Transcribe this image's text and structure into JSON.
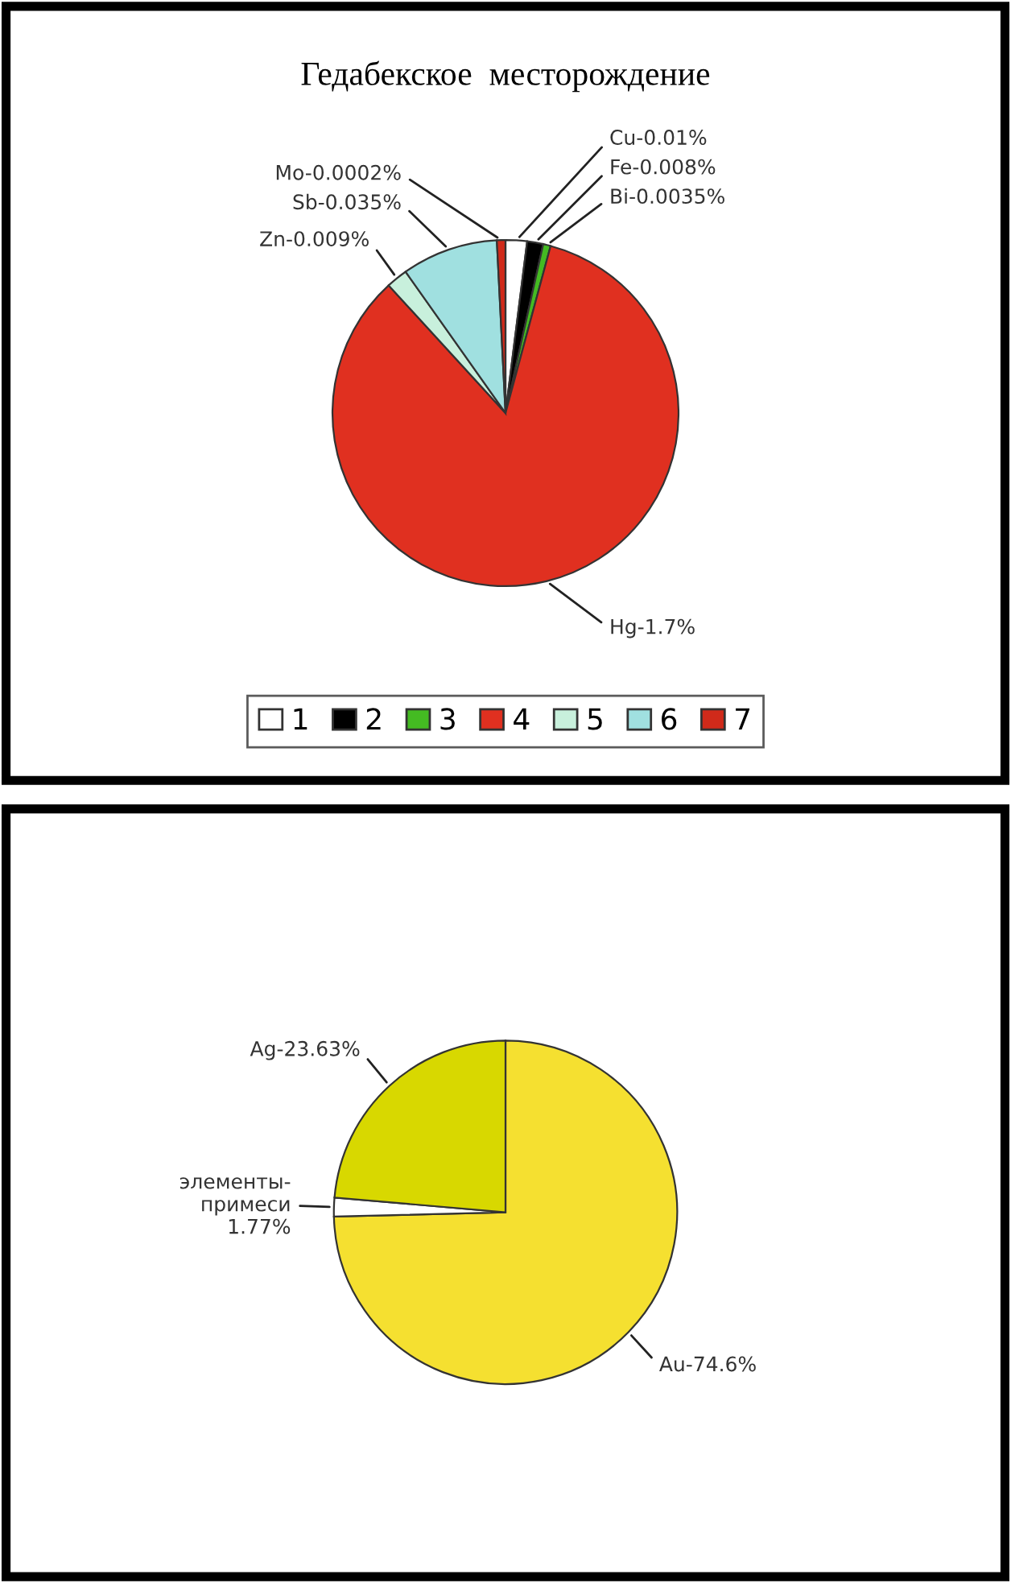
{
  "chart_data": [
    {
      "type": "pie",
      "title": "Гедабекское  месторождение",
      "categories": [
        "1",
        "2",
        "3",
        "4",
        "5",
        "6",
        "7"
      ],
      "values": [
        2,
        1.5,
        0.7,
        84,
        2,
        9,
        0.8
      ],
      "colors": [
        "#ffffff",
        "#000000",
        "#44bb22",
        "#e03020",
        "#c8f0dc",
        "#a0e0e0",
        "#d02a1a"
      ],
      "value_labels": [
        "Cu-0.01%",
        "Fe-0.008%",
        "Bi-0.0035%",
        "Hg-1.7%",
        "Zn-0.009%",
        "Sb-0.035%",
        "Mo-0.0002%"
      ],
      "legend": "bottom"
    },
    {
      "type": "pie",
      "categories": [
        null,
        null,
        null
      ],
      "values": [
        74.6,
        1.77,
        23.63
      ],
      "colors": [
        "#f5e030",
        "#ffffff",
        "#d8d800"
      ],
      "value_labels": [
        "Au-74.6%",
        "элементы-\nпримеси\n1.77%",
        "Ag-23.63%"
      ]
    }
  ]
}
